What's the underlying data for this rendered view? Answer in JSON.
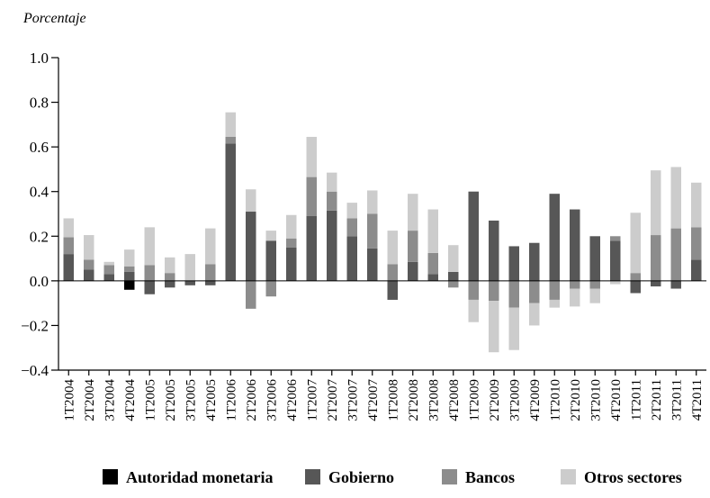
{
  "chart_data": {
    "type": "bar",
    "stacked": true,
    "ylabel": "Porcentaje",
    "ylim": [
      -0.4,
      1.0
    ],
    "yticks": [
      "1.0",
      "0.8",
      "0.6",
      "0.4",
      "0.2",
      "0.0",
      "−0.2",
      "−0.4"
    ],
    "ytick_values": [
      1.0,
      0.8,
      0.6,
      0.4,
      0.2,
      0.0,
      -0.2,
      -0.4
    ],
    "categories": [
      "1T2004",
      "2T2004",
      "3T2004",
      "4T2004",
      "1T2005",
      "2T2005",
      "3T2005",
      "4T2005",
      "1T2006",
      "2T2006",
      "3T2006",
      "4T2006",
      "1T2007",
      "2T2007",
      "3T2007",
      "4T2007",
      "1T2008",
      "2T2008",
      "3T2008",
      "4T2008",
      "1T2009",
      "2T2009",
      "3T2009",
      "4T2009",
      "1T2010",
      "2T2010",
      "3T2010",
      "4T2010",
      "1T2011",
      "2T2011",
      "3T2011",
      "4T2011"
    ],
    "series": [
      {
        "name": "Autoridad monetaria",
        "color": "#000000",
        "values": [
          0,
          0,
          0,
          -0.04,
          0,
          0,
          0,
          0,
          0,
          0,
          0,
          0,
          0,
          0,
          0,
          0,
          0,
          0,
          0,
          0,
          0,
          0,
          0,
          0,
          0,
          0,
          0,
          0,
          0,
          0,
          0,
          0
        ]
      },
      {
        "name": "Gobierno",
        "color": "#575757",
        "values": [
          0.12,
          0.05,
          0.03,
          0.04,
          -0.06,
          -0.03,
          -0.02,
          -0.02,
          0.615,
          0.31,
          0.18,
          0.15,
          0.29,
          0.315,
          0.2,
          0.145,
          -0.085,
          0.085,
          0.03,
          0.04,
          0.4,
          0.27,
          0.155,
          0.17,
          0.39,
          0.32,
          0.2,
          0.18,
          -0.055,
          -0.025,
          -0.035,
          0.095
        ]
      },
      {
        "name": "Bancos",
        "color": "#8c8c8c",
        "values": [
          0.075,
          0.045,
          0.04,
          0.025,
          0.07,
          0.035,
          0,
          0.075,
          0.03,
          -0.125,
          -0.07,
          0.04,
          0.175,
          0.085,
          0.08,
          0.155,
          0.075,
          0.14,
          0.095,
          -0.03,
          -0.085,
          -0.09,
          -0.12,
          -0.1,
          -0.085,
          -0.035,
          -0.035,
          0.02,
          0.035,
          0.205,
          0.235,
          0.145
        ]
      },
      {
        "name": "Otros sectores",
        "color": "#cccccc",
        "values": [
          0.085,
          0.11,
          0.015,
          0.075,
          0.17,
          0.07,
          0.12,
          0.16,
          0.11,
          0.1,
          0.045,
          0.105,
          0.18,
          0.085,
          0.07,
          0.105,
          0.15,
          0.165,
          0.195,
          0.12,
          -0.1,
          -0.23,
          -0.19,
          -0.1,
          -0.035,
          -0.08,
          -0.065,
          -0.015,
          0.27,
          0.29,
          0.275,
          0.2
        ]
      }
    ],
    "legend": "bottom",
    "grid": false
  }
}
